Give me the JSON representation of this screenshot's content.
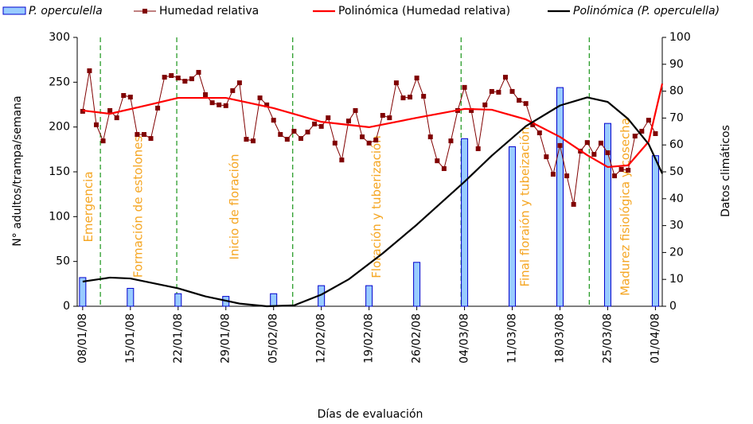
{
  "chart_data": {
    "type": "combo",
    "x_label": "Días de evaluación",
    "y_label": "N° adultos/trampa/semana",
    "y2_label": "Datos climáticos",
    "xlim": [
      -0.8,
      85
    ],
    "xticks": [
      {
        "value": 0,
        "label": "08/01/08"
      },
      {
        "value": 7,
        "label": "15/01/08"
      },
      {
        "value": 14,
        "label": "22/01/08"
      },
      {
        "value": 21,
        "label": "29/01/08"
      },
      {
        "value": 28,
        "label": "05/02/08"
      },
      {
        "value": 35,
        "label": "12/02/08"
      },
      {
        "value": 42,
        "label": "19/02/08"
      },
      {
        "value": 49,
        "label": "26/02/08"
      },
      {
        "value": 56,
        "label": "04/03/08"
      },
      {
        "value": 63,
        "label": "11/03/08"
      },
      {
        "value": 70,
        "label": "18/03/08"
      },
      {
        "value": 77,
        "label": "25/03/08"
      },
      {
        "value": 84,
        "label": "01/04/08"
      }
    ],
    "ylim": [
      0,
      300
    ],
    "yticks": [
      0,
      50,
      100,
      150,
      200,
      250,
      300
    ],
    "y2lim": [
      0,
      100
    ],
    "y2ticks": [
      0,
      10,
      20,
      30,
      40,
      50,
      60,
      70,
      80,
      90,
      100
    ],
    "phase_boundaries": [
      2.6,
      13.8,
      30.8,
      55.5,
      74.3
    ],
    "phase_labels": [
      "Emergencia",
      "Formación de estolones",
      "Inicio de floración",
      "Floración y tuberización",
      "Final floraión y tubeización",
      "Madurez fisiológica y cosecha"
    ],
    "series": [
      {
        "name": "P. operculella",
        "kind": "bar",
        "axis": "y",
        "color": "#99ccff",
        "edge": "#0000cc",
        "x": [
          0,
          7,
          14,
          21,
          28,
          35,
          42,
          49,
          56,
          63,
          70,
          77,
          84
        ],
        "values": [
          32,
          20,
          14,
          11,
          14,
          23,
          23,
          49,
          187,
          178,
          244,
          204,
          168
        ]
      },
      {
        "name": "Humedad relativa",
        "kind": "line-marker",
        "axis": "y2",
        "color": "#800000",
        "x": [
          0,
          1,
          2,
          3,
          4,
          5,
          6,
          7,
          8,
          9,
          10,
          11,
          12,
          13,
          14,
          15,
          16,
          17,
          18,
          19,
          20,
          21,
          22,
          23,
          24,
          25,
          26,
          27,
          28,
          29,
          30,
          31,
          32,
          33,
          34,
          35,
          36,
          37,
          38,
          39,
          40,
          41,
          42,
          43,
          44,
          45,
          46,
          47,
          48,
          49,
          50,
          51,
          52,
          53,
          54,
          55,
          56,
          57,
          58,
          59,
          60,
          61,
          62,
          63,
          64,
          65,
          66,
          67,
          68,
          69,
          70,
          71,
          72,
          73,
          74,
          75,
          76,
          77,
          78,
          79,
          80,
          81,
          82,
          83,
          84
        ],
        "values": [
          72.5,
          87.6,
          67.5,
          61.5,
          72.8,
          70.1,
          78.4,
          77.8,
          63.9,
          63.9,
          62.4,
          73.7,
          85.2,
          85.8,
          84.9,
          83.7,
          84.6,
          87.0,
          78.7,
          75.7,
          74.9,
          74.6,
          80.2,
          83.1,
          62.1,
          61.5,
          77.5,
          74.9,
          69.2,
          63.9,
          62.1,
          65.1,
          62.4,
          64.8,
          67.8,
          66.9,
          70.1,
          60.7,
          54.4,
          68.9,
          72.8,
          63.0,
          60.7,
          61.8,
          71.0,
          70.1,
          83.1,
          77.5,
          77.8,
          84.9,
          78.1,
          63.0,
          54.1,
          51.2,
          61.5,
          72.8,
          81.4,
          72.8,
          58.6,
          74.9,
          79.9,
          79.6,
          85.2,
          79.9,
          76.6,
          75.4,
          67.5,
          64.5,
          55.6,
          49.1,
          59.8,
          48.5,
          37.9,
          57.7,
          60.9,
          56.5,
          60.7,
          57.1,
          48.5,
          50.9,
          50.6,
          63.3,
          65.1,
          69.2,
          64.2
        ]
      },
      {
        "name": "Polinómica (Humedad relativa)",
        "kind": "trend",
        "axis": "y2",
        "color": "#ff0000",
        "x": [
          0,
          4,
          10,
          14,
          21,
          28,
          35,
          42,
          49,
          56,
          60,
          65,
          70,
          74,
          77,
          80,
          83,
          85
        ],
        "values": [
          72.8,
          71.6,
          75.1,
          77.5,
          77.5,
          73.7,
          68.6,
          66.6,
          70.1,
          73.4,
          73.1,
          69.5,
          63.0,
          56.2,
          51.8,
          52.4,
          61.2,
          82.8
        ]
      },
      {
        "name": "Polinómica (P. operculella)",
        "kind": "trend",
        "axis": "y",
        "color": "#000000",
        "italic": true,
        "x": [
          0,
          4,
          7,
          14,
          18,
          23,
          27,
          31,
          35,
          39,
          44,
          49,
          56,
          60,
          65,
          70,
          74,
          77,
          80,
          83,
          85
        ],
        "values": [
          27.5,
          32,
          31,
          20,
          11,
          3,
          0,
          1,
          13,
          30,
          59,
          91,
          139,
          168,
          201,
          224,
          233,
          228,
          209,
          181,
          148
        ]
      }
    ]
  }
}
